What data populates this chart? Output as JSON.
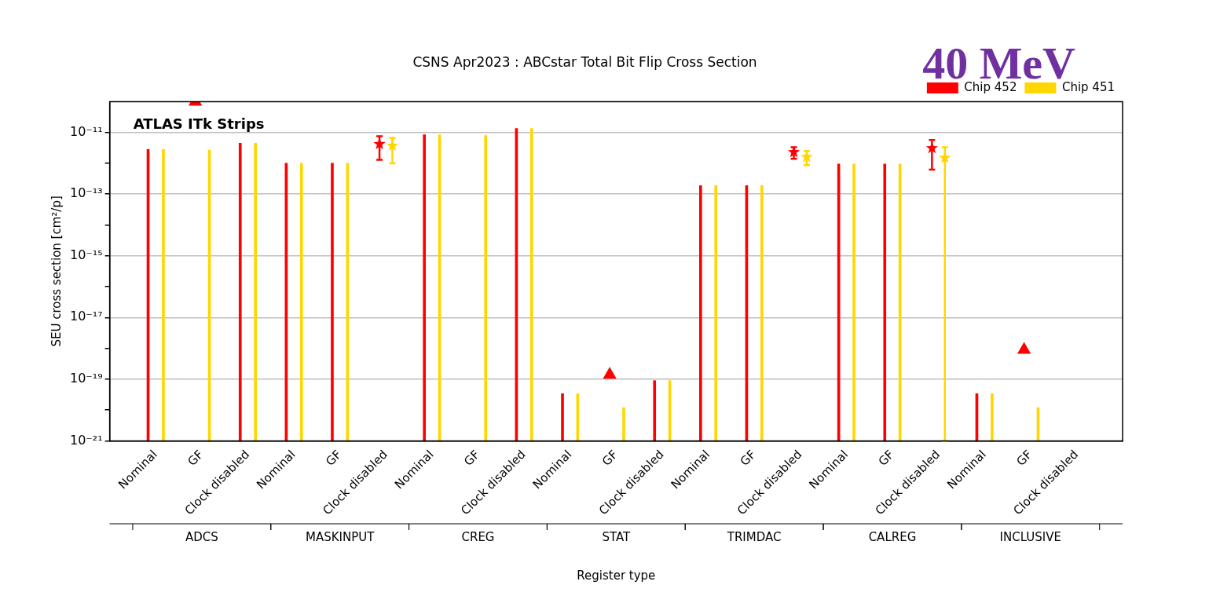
{
  "chart_data": {
    "type": "bar",
    "title": "CSNS Apr2023 : ABCstar Total Bit Flip Cross Section",
    "xlabel": "Register type",
    "ylabel": "SEU cross section [cm²/p]",
    "categories": [
      "Nominal",
      "GF",
      "Clock disabled",
      "Nominal",
      "GF",
      "Clock disabled",
      "Nominal",
      "GF",
      "Clock disabled",
      "Nominal",
      "GF",
      "Clock disabled",
      "Nominal",
      "GF",
      "Clock disabled",
      "Nominal",
      "GF",
      "Clock disabled",
      "Nominal",
      "GF",
      "Clock disabled"
    ],
    "series": [
      {
        "name": "Chip 452",
        "color": "#ff0000",
        "values": [
          2.8e-12,
          null,
          4.5e-12,
          1e-12,
          1e-12,
          null,
          8.4e-12,
          null,
          1.35e-11,
          3.4e-20,
          null,
          9e-20,
          1.9e-13,
          1.9e-13,
          null,
          9.5e-13,
          9.5e-13,
          null,
          3.4e-20,
          null,
          null
        ]
      },
      {
        "name": "Chip 451",
        "color": "#ffd700",
        "values": [
          2.8e-12,
          2.7e-12,
          4.5e-12,
          1e-12,
          1e-12,
          null,
          8.4e-12,
          8e-12,
          1.35e-11,
          3.4e-20,
          1.2e-20,
          9e-20,
          1.9e-13,
          1.9e-13,
          null,
          9.5e-13,
          9.5e-13,
          null,
          3.4e-20,
          1.2e-20,
          null
        ]
      },
      {
        "type": "scatter",
        "marker": "triangle",
        "color": "#ff0000",
        "values": [
          null,
          1e-10,
          null,
          null,
          null,
          null,
          null,
          null,
          null,
          null,
          1.4e-19,
          null,
          null,
          null,
          null,
          null,
          null,
          null,
          null,
          9e-19,
          null
        ]
      },
      {
        "type": "scatter",
        "marker": "star",
        "color": "#ff0000",
        "values": [
          null,
          null,
          null,
          null,
          null,
          4.2e-12,
          null,
          null,
          null,
          null,
          null,
          null,
          null,
          null,
          2.3e-12,
          null,
          null,
          3.1e-12,
          null,
          null,
          null
        ],
        "errors": [
          null,
          null,
          null,
          null,
          null,
          [
            1.3e-12,
            7.5e-12
          ],
          null,
          null,
          null,
          null,
          null,
          null,
          null,
          null,
          [
            1.4e-12,
            3.3e-12
          ],
          null,
          null,
          [
            6.2e-13,
            5.7e-12
          ],
          null,
          null,
          null
        ]
      },
      {
        "type": "scatter",
        "marker": "star",
        "color": "#ffd700",
        "values": [
          null,
          null,
          null,
          null,
          null,
          3.7e-12,
          null,
          null,
          null,
          null,
          null,
          null,
          null,
          null,
          1.6e-12,
          null,
          null,
          1.5e-12,
          null,
          null,
          null
        ],
        "errors": [
          null,
          null,
          null,
          null,
          null,
          [
            1e-12,
            6.6e-12
          ],
          null,
          null,
          null,
          null,
          null,
          null,
          null,
          null,
          [
            8.8e-13,
            2.5e-12
          ],
          null,
          null,
          [
            1e-21,
            3.3e-12
          ],
          null,
          null,
          null
        ]
      }
    ],
    "log": "y",
    "ylim": [
      1e-21,
      1e-10
    ],
    "yticks": [
      {
        "value": 1e-21,
        "label": "10⁻²¹"
      },
      {
        "value": 1e-20,
        "label": null
      },
      {
        "value": 1e-19,
        "label": "10⁻¹⁹"
      },
      {
        "value": 1e-18,
        "label": null
      },
      {
        "value": 1e-17,
        "label": "10⁻¹⁷"
      },
      {
        "value": 1e-16,
        "label": null
      },
      {
        "value": 1e-15,
        "label": "10⁻¹⁵"
      },
      {
        "value": 1e-14,
        "label": null
      },
      {
        "value": 1e-13,
        "label": "10⁻¹³"
      },
      {
        "value": 1e-12,
        "label": null
      },
      {
        "value": 1e-11,
        "label": "10⁻¹¹"
      }
    ],
    "grid": "y",
    "legend": "top right",
    "annotations": [
      "ADCS",
      "MASKINPUT",
      "CREG",
      "STAT",
      "TRIMDAC",
      "CALREG",
      "INCLUSIVE",
      "ATLAS ITk Strips",
      "40 MeV"
    ]
  }
}
